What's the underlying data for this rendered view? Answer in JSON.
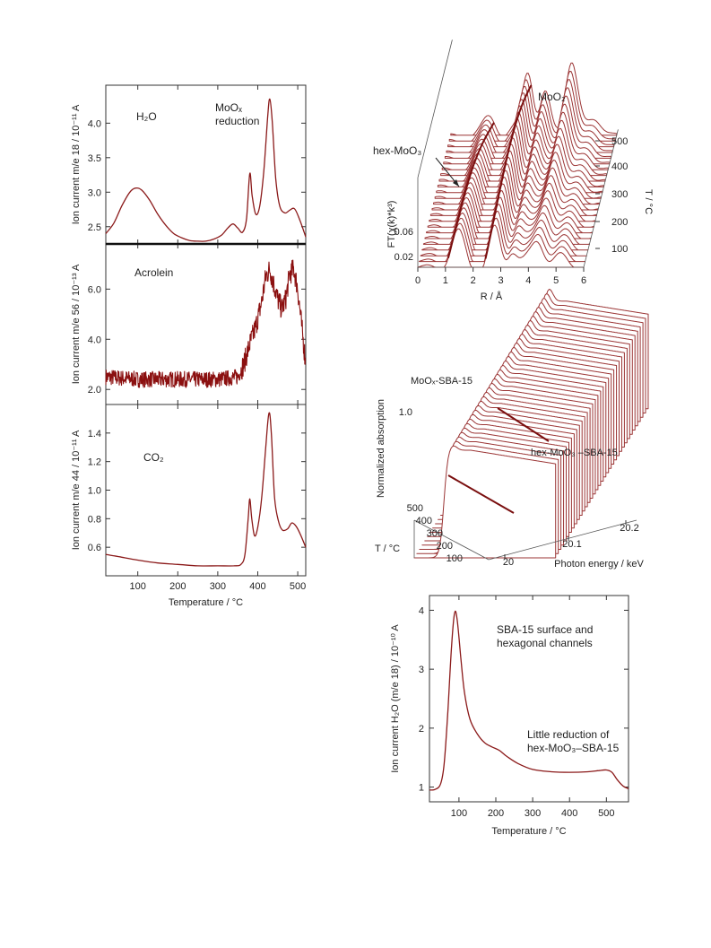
{
  "chart_data": [
    {
      "type": "line",
      "id": "tpr_stack",
      "xlabel": "Temperature / °C",
      "xticks": [
        100,
        200,
        300,
        400,
        500
      ],
      "xlim": [
        20,
        520
      ],
      "panels": [
        {
          "name": "H₂O",
          "ylabel": "Ion current m/e 18 / 10⁻¹¹ A",
          "ylim": [
            2.25,
            4.55
          ],
          "yticks": [
            "2.5",
            "3.0",
            "3.5",
            "4.0"
          ],
          "annotations": [
            "H₂O",
            "MoOₓ",
            "reduction"
          ],
          "points": [
            [
              20,
              2.4
            ],
            [
              40,
              2.55
            ],
            [
              60,
              2.8
            ],
            [
              80,
              3.0
            ],
            [
              95,
              3.06
            ],
            [
              110,
              3.03
            ],
            [
              130,
              2.88
            ],
            [
              150,
              2.68
            ],
            [
              170,
              2.52
            ],
            [
              190,
              2.4
            ],
            [
              210,
              2.34
            ],
            [
              230,
              2.3
            ],
            [
              250,
              2.29
            ],
            [
              270,
              2.29
            ],
            [
              290,
              2.32
            ],
            [
              310,
              2.38
            ],
            [
              325,
              2.48
            ],
            [
              338,
              2.54
            ],
            [
              350,
              2.48
            ],
            [
              362,
              2.42
            ],
            [
              372,
              2.62
            ],
            [
              380,
              3.27
            ],
            [
              386,
              2.95
            ],
            [
              395,
              2.68
            ],
            [
              405,
              2.8
            ],
            [
              415,
              3.3
            ],
            [
              425,
              4.1
            ],
            [
              430,
              4.35
            ],
            [
              436,
              4.05
            ],
            [
              445,
              3.2
            ],
            [
              455,
              2.8
            ],
            [
              468,
              2.7
            ],
            [
              480,
              2.74
            ],
            [
              492,
              2.76
            ],
            [
              505,
              2.6
            ],
            [
              520,
              2.35
            ]
          ]
        },
        {
          "name": "Acrolein",
          "ylabel": "Ion current m/e 56 / 10⁻¹³ A",
          "ylim": [
            1.4,
            7.8
          ],
          "yticks": [
            "2.0",
            "4.0",
            "6.0"
          ],
          "annotations": [
            "Acrolein"
          ],
          "points": [
            [
              20,
              2.5
            ],
            [
              100,
              2.4
            ],
            [
              200,
              2.4
            ],
            [
              300,
              2.4
            ],
            [
              350,
              2.5
            ],
            [
              365,
              3.0
            ],
            [
              380,
              3.8
            ],
            [
              395,
              4.5
            ],
            [
              410,
              5.5
            ],
            [
              420,
              6.5
            ],
            [
              430,
              6.8
            ],
            [
              440,
              6.2
            ],
            [
              450,
              5.6
            ],
            [
              460,
              5.2
            ],
            [
              470,
              5.6
            ],
            [
              480,
              6.6
            ],
            [
              490,
              6.8
            ],
            [
              500,
              6.0
            ],
            [
              510,
              4.5
            ],
            [
              520,
              3.0
            ]
          ]
        },
        {
          "name": "CO₂",
          "ylabel": "Ion current m/e 44 / 10⁻¹¹ A",
          "ylim": [
            0.4,
            1.6
          ],
          "yticks": [
            "0.6",
            "0.8",
            "1.0",
            "1.2",
            "1.4"
          ],
          "annotations": [
            "CO₂"
          ],
          "points": [
            [
              20,
              0.55
            ],
            [
              60,
              0.53
            ],
            [
              100,
              0.51
            ],
            [
              150,
              0.49
            ],
            [
              200,
              0.48
            ],
            [
              250,
              0.47
            ],
            [
              300,
              0.47
            ],
            [
              340,
              0.47
            ],
            [
              358,
              0.48
            ],
            [
              368,
              0.55
            ],
            [
              376,
              0.8
            ],
            [
              380,
              0.94
            ],
            [
              385,
              0.8
            ],
            [
              392,
              0.68
            ],
            [
              400,
              0.74
            ],
            [
              410,
              0.95
            ],
            [
              420,
              1.3
            ],
            [
              428,
              1.54
            ],
            [
              434,
              1.4
            ],
            [
              442,
              0.95
            ],
            [
              452,
              0.78
            ],
            [
              462,
              0.72
            ],
            [
              475,
              0.73
            ],
            [
              485,
              0.77
            ],
            [
              495,
              0.75
            ],
            [
              505,
              0.7
            ],
            [
              520,
              0.6
            ]
          ]
        }
      ]
    },
    {
      "type": "line",
      "id": "ft_waterfall",
      "xlabel": "R / Å",
      "ylabel": "FT(χ(k)*k³)",
      "zlabel": "T / °C",
      "xticks": [
        "0",
        "1",
        "2",
        "3",
        "4",
        "5",
        "6"
      ],
      "yticks": [
        "0.02",
        "0.06"
      ],
      "zticks": [
        "100",
        "200",
        "300",
        "400",
        "500"
      ],
      "annotations": [
        "hex-MoO₃",
        "MoO₂"
      ],
      "temperature_range": [
        50,
        500
      ],
      "peaks_R": [
        1.4,
        2.8,
        4.3
      ]
    },
    {
      "type": "line",
      "id": "xanes_waterfall",
      "xlabel": "Photon energy / keV",
      "ylabel": "Normalized absorption",
      "zlabel": "T / °C",
      "xticks": [
        "20",
        "20.1",
        "20.2"
      ],
      "yticks": [
        "1.0"
      ],
      "zticks": [
        "100",
        "200",
        "300",
        "400",
        "500"
      ],
      "annotations": [
        "MoOₓ-SBA-15",
        "hex-MoO₃ –SBA-15"
      ],
      "edge_energy_keV": 20.0
    },
    {
      "type": "line",
      "id": "h2o_tpr",
      "xlabel": "Temperature / °C",
      "ylabel": "Ion current H₂O (m/e 18) / 10⁻¹⁰ A",
      "xticks": [
        100,
        200,
        300,
        400,
        500
      ],
      "yticks": [
        1,
        2,
        3,
        4
      ],
      "xlim": [
        20,
        560
      ],
      "ylim": [
        0.75,
        4.25
      ],
      "annotations": [
        "SBA-15 surface and",
        "hexagonal channels",
        "Little reduction of",
        "hex-MoO₃–SBA-15"
      ],
      "points": [
        [
          20,
          0.95
        ],
        [
          35,
          0.96
        ],
        [
          50,
          1.05
        ],
        [
          60,
          1.4
        ],
        [
          70,
          2.3
        ],
        [
          80,
          3.4
        ],
        [
          88,
          3.95
        ],
        [
          95,
          3.85
        ],
        [
          105,
          3.2
        ],
        [
          115,
          2.6
        ],
        [
          130,
          2.15
        ],
        [
          150,
          1.9
        ],
        [
          170,
          1.75
        ],
        [
          190,
          1.68
        ],
        [
          210,
          1.62
        ],
        [
          230,
          1.52
        ],
        [
          260,
          1.4
        ],
        [
          300,
          1.3
        ],
        [
          350,
          1.26
        ],
        [
          400,
          1.25
        ],
        [
          450,
          1.26
        ],
        [
          480,
          1.28
        ],
        [
          500,
          1.29
        ],
        [
          515,
          1.25
        ],
        [
          530,
          1.12
        ],
        [
          545,
          1.02
        ],
        [
          560,
          0.97
        ]
      ]
    }
  ]
}
